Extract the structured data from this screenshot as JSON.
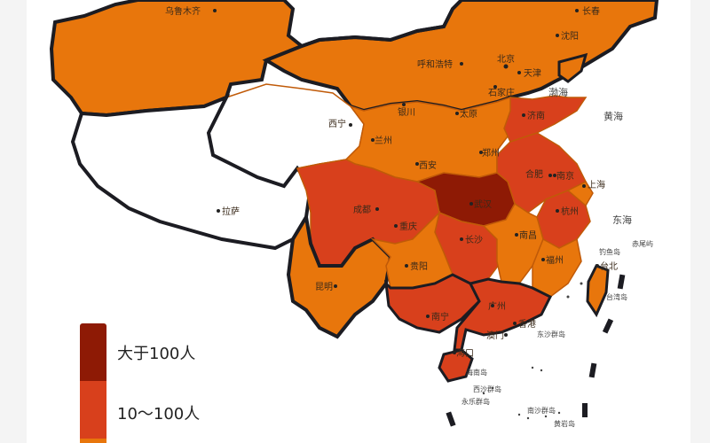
{
  "legend": {
    "items": [
      {
        "label": "大于100人",
        "color": "#8e1a05"
      },
      {
        "label": "10～100人",
        "color": "#d8401c"
      },
      {
        "label": "",
        "color": "#e8760c"
      }
    ]
  },
  "colors": {
    "high": "#8e1a05",
    "mid": "#d8401c",
    "low": "#e8760c",
    "none": "#ffffff",
    "border": "#1c1c22",
    "province_line": "#c05a08"
  },
  "cities": {
    "urumqi": "乌鲁木齐",
    "changchun": "长春",
    "shenyang": "沈阳",
    "hohhot": "呼和浩特",
    "beijing": "北京",
    "tianjin": "天津",
    "shijiazhuang": "石家庄",
    "yinchuan": "银川",
    "taiyuan": "太原",
    "jinan": "济南",
    "xining": "西宁",
    "lanzhou": "兰州",
    "zhengzhou": "郑州",
    "xian": "西安",
    "hefei": "合肥",
    "nanjing": "南京",
    "shanghai": "上海",
    "wuhan": "武汉",
    "chengdu": "成都",
    "chongqing": "重庆",
    "hangzhou": "杭州",
    "lhasa": "拉萨",
    "changsha": "长沙",
    "nanchang": "南昌",
    "guiyang": "贵阳",
    "fuzhou": "福州",
    "taibei": "台北",
    "kunming": "昆明",
    "nanning": "南宁",
    "guangzhou": "广州",
    "xianggang": "香港",
    "aomen": "澳门",
    "haikou": "海口"
  },
  "seas": {
    "bohai": "渤海",
    "huanghai": "黄海",
    "donghai": "东海"
  },
  "islands": {
    "diaoyu": "钓鱼岛",
    "chiwei": "赤尾屿",
    "taiwan": "台湾岛",
    "dongsha": "东沙群岛",
    "hainan": "海南岛",
    "xisha": "西沙群岛",
    "yongle": "永乐群岛",
    "nansha": "南沙群岛",
    "huangyan": "黄岩岛"
  }
}
